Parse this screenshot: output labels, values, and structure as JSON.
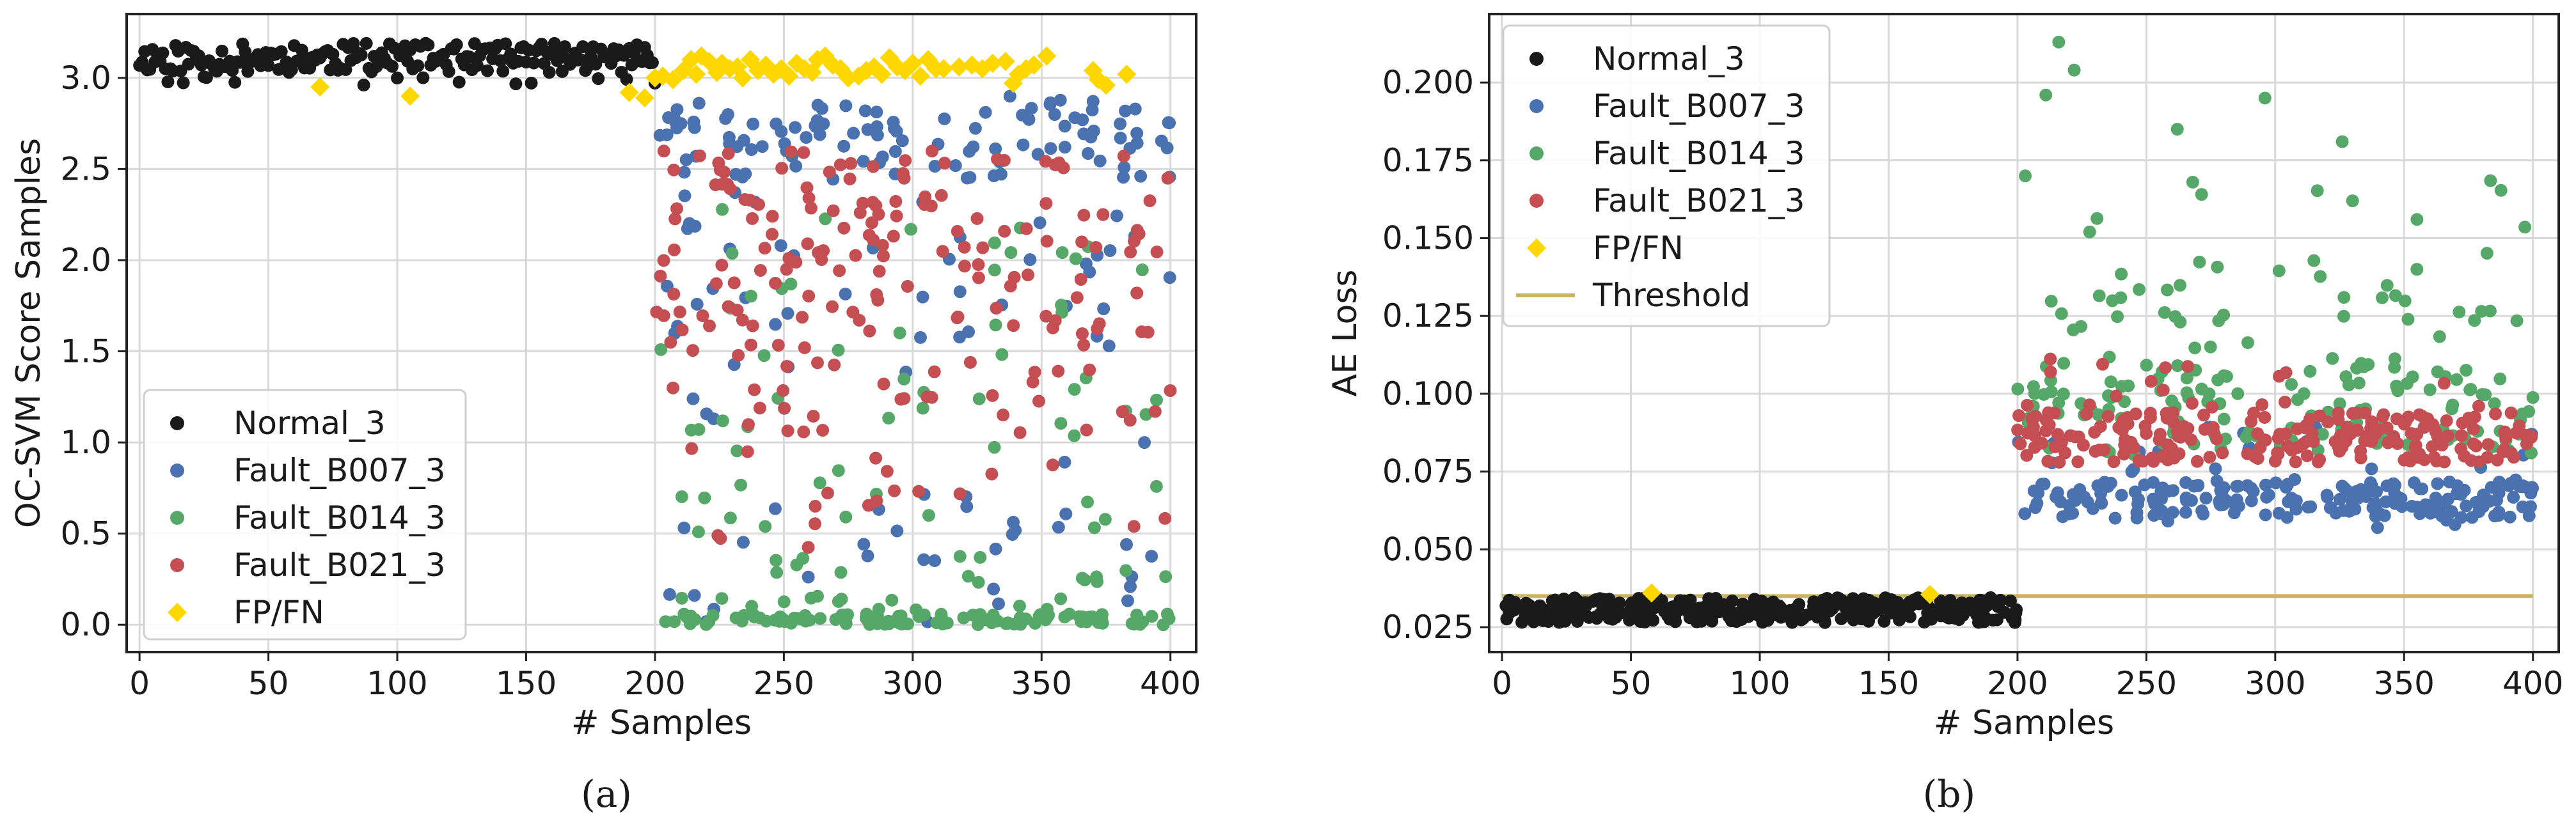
{
  "figure": {
    "caption_a": "(a)",
    "caption_b": "(b)",
    "colors": {
      "normal": "#1a1a1a",
      "b007": "#4a72b0",
      "b014": "#55a868",
      "b021": "#c44e52",
      "fpfn": "#ffd700",
      "threshold": "#c9b46a",
      "grid": "#d9d9d9",
      "axes": "#222222"
    }
  },
  "chart_data": [
    {
      "type": "scatter",
      "panel": "a",
      "title": "",
      "xlabel": "# Samples",
      "ylabel": "OC-SVM Score Samples",
      "xlim": [
        -5,
        410
      ],
      "ylim": [
        -0.15,
        3.35
      ],
      "xticks": [
        0,
        50,
        100,
        150,
        200,
        250,
        300,
        350,
        400
      ],
      "xtick_labels": [
        "0",
        "50",
        "100",
        "150",
        "200",
        "250",
        "300",
        "350",
        "400"
      ],
      "yticks": [
        0.0,
        0.5,
        1.0,
        1.5,
        2.0,
        2.5,
        3.0
      ],
      "ytick_labels": [
        "0.0",
        "0.5",
        "1.0",
        "1.5",
        "2.0",
        "2.5",
        "3.0"
      ],
      "legend_position": "lower-left",
      "series": [
        {
          "name": "Normal_3",
          "key": "normal",
          "marker": "circle",
          "x_range": [
            0,
            200
          ],
          "seed": 11,
          "description": "samples 0-200 with scores mostly between 3.0 and 3.2"
        },
        {
          "name": "Fault_B007_3",
          "key": "b007",
          "marker": "circle",
          "x_range": [
            200,
            400
          ],
          "seed": 23,
          "description": "scores mostly 2.5-2.9, scattered down to 0"
        },
        {
          "name": "Fault_B014_3",
          "key": "b014",
          "marker": "circle",
          "x_range": [
            200,
            400
          ],
          "seed": 37,
          "description": "many scores near 0.0, scattered up to 2.3"
        },
        {
          "name": "Fault_B021_3",
          "key": "b021",
          "marker": "circle",
          "x_range": [
            200,
            400
          ],
          "seed": 51,
          "description": "scores spread mostly 1.0-2.6"
        },
        {
          "name": "FP/FN",
          "key": "fpfn",
          "marker": "diamond",
          "points": [
            [
              70,
              2.95
            ],
            [
              105,
              2.9
            ],
            [
              190,
              2.92
            ],
            [
              196,
              2.89
            ],
            [
              200,
              3.0
            ],
            [
              203,
              3.01
            ],
            [
              207,
              2.99
            ],
            [
              211,
              3.04
            ],
            [
              214,
              3.1
            ],
            [
              216,
              3.02
            ],
            [
              218,
              3.12
            ],
            [
              221,
              3.09
            ],
            [
              224,
              3.03
            ],
            [
              226,
              3.08
            ],
            [
              229,
              3.05
            ],
            [
              232,
              3.06
            ],
            [
              234,
              3.0
            ],
            [
              237,
              3.1
            ],
            [
              240,
              3.04
            ],
            [
              243,
              3.07
            ],
            [
              246,
              3.02
            ],
            [
              249,
              3.05
            ],
            [
              252,
              3.01
            ],
            [
              255,
              3.08
            ],
            [
              258,
              3.05
            ],
            [
              261,
              3.03
            ],
            [
              263,
              3.1
            ],
            [
              266,
              3.12
            ],
            [
              269,
              3.07
            ],
            [
              272,
              3.05
            ],
            [
              275,
              3.0
            ],
            [
              279,
              3.01
            ],
            [
              282,
              3.04
            ],
            [
              285,
              3.06
            ],
            [
              288,
              3.02
            ],
            [
              291,
              3.11
            ],
            [
              294,
              3.06
            ],
            [
              297,
              3.04
            ],
            [
              300,
              3.08
            ],
            [
              303,
              3.01
            ],
            [
              306,
              3.1
            ],
            [
              309,
              3.05
            ],
            [
              312,
              3.05
            ],
            [
              318,
              3.06
            ],
            [
              323,
              3.07
            ],
            [
              327,
              3.05
            ],
            [
              331,
              3.08
            ],
            [
              336,
              3.09
            ],
            [
              339,
              2.97
            ],
            [
              341,
              3.02
            ],
            [
              344,
              3.05
            ],
            [
              347,
              3.07
            ],
            [
              352,
              3.12
            ],
            [
              370,
              3.04
            ],
            [
              372,
              2.99
            ],
            [
              375,
              2.96
            ],
            [
              383,
              3.02
            ]
          ]
        }
      ]
    },
    {
      "type": "scatter",
      "panel": "b",
      "title": "",
      "xlabel": "# Samples",
      "ylabel": "AE Loss",
      "xlim": [
        -5,
        410
      ],
      "ylim": [
        0.017,
        0.222
      ],
      "xticks": [
        0,
        50,
        100,
        150,
        200,
        250,
        300,
        350,
        400
      ],
      "xtick_labels": [
        "0",
        "50",
        "100",
        "150",
        "200",
        "250",
        "300",
        "350",
        "400"
      ],
      "yticks": [
        0.025,
        0.05,
        0.075,
        0.1,
        0.125,
        0.15,
        0.175,
        0.2
      ],
      "ytick_labels": [
        "0.025",
        "0.050",
        "0.075",
        "0.100",
        "0.125",
        "0.150",
        "0.175",
        "0.200"
      ],
      "legend_position": "top-left",
      "threshold": {
        "name": "Threshold",
        "value": 0.035,
        "x_range": [
          0,
          400
        ]
      },
      "series": [
        {
          "name": "Normal_3",
          "key": "normal",
          "marker": "circle",
          "x_range": [
            0,
            200
          ],
          "seed": 101,
          "description": "loss between 0.026 and 0.035"
        },
        {
          "name": "Fault_B007_3",
          "key": "b007",
          "marker": "circle",
          "x_range": [
            200,
            400
          ],
          "seed": 113,
          "description": "loss mostly 0.055-0.075"
        },
        {
          "name": "Fault_B014_3",
          "key": "b014",
          "marker": "circle",
          "x_range": [
            200,
            400
          ],
          "seed": 127,
          "description": "loss mostly 0.08-0.12 with spikes up to 0.21",
          "peaks": [
            [
              203,
              0.17
            ],
            [
              211,
              0.196
            ],
            [
              216,
              0.213
            ],
            [
              222,
              0.204
            ],
            [
              228,
              0.152
            ],
            [
              262,
              0.185
            ],
            [
              268,
              0.168
            ],
            [
              296,
              0.195
            ],
            [
              326,
              0.181
            ],
            [
              330,
              0.162
            ],
            [
              355,
              0.156
            ]
          ]
        },
        {
          "name": "Fault_B021_3",
          "key": "b021",
          "marker": "circle",
          "x_range": [
            200,
            400
          ],
          "seed": 139,
          "description": "loss mostly 0.078-0.095"
        },
        {
          "name": "FP/FN",
          "key": "fpfn",
          "marker": "diamond",
          "points": [
            [
              58,
              0.036
            ],
            [
              166,
              0.0355
            ]
          ]
        }
      ]
    }
  ]
}
